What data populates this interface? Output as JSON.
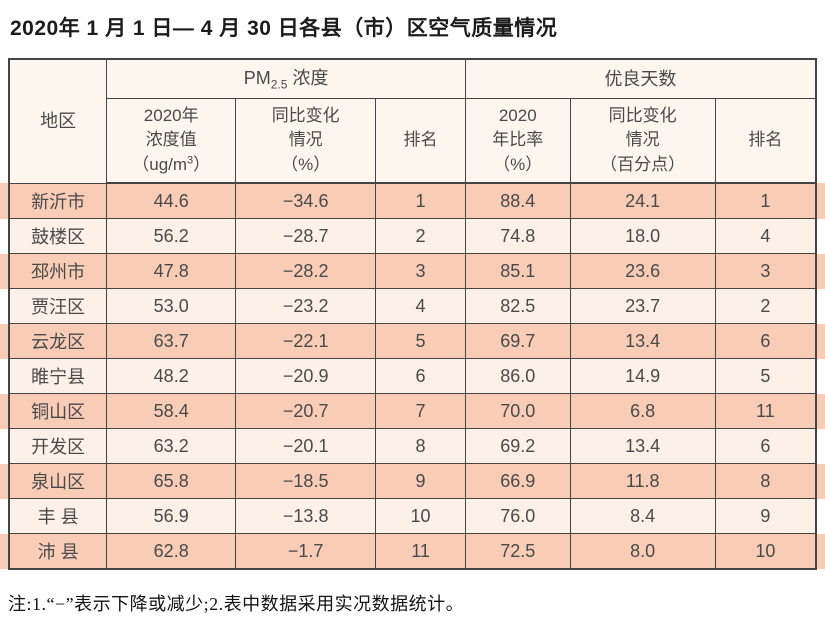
{
  "title": "2020年 1 月 1 日— 4 月 30 日各县（市）区空气质量情况",
  "table": {
    "header": {
      "region": "地区",
      "pm_group": {
        "prefix": "PM",
        "sub": "2.5",
        "suffix": " 浓度"
      },
      "good_group": "优良天数",
      "pm_value": {
        "line1": "2020年",
        "line2": "浓度值",
        "line3_prefix": "（ug/m",
        "line3_sup": "3",
        "line3_suffix": "）"
      },
      "pm_change": {
        "line1": "同比变化",
        "line2": "情况",
        "line3": "（%）"
      },
      "pm_rank": "排名",
      "good_ratio": {
        "line1": "2020",
        "line2": "年比率",
        "line3": "（%）"
      },
      "good_change": {
        "line1": "同比变化",
        "line2": "情况",
        "line3": "（百分点）"
      },
      "good_rank": "排名"
    },
    "rows": [
      {
        "region": "新沂市",
        "pm_value": "44.6",
        "pm_change": "−34.6",
        "pm_rank": "1",
        "good_ratio": "88.4",
        "good_change": "24.1",
        "good_rank": "1"
      },
      {
        "region": "鼓楼区",
        "pm_value": "56.2",
        "pm_change": "−28.7",
        "pm_rank": "2",
        "good_ratio": "74.8",
        "good_change": "18.0",
        "good_rank": "4"
      },
      {
        "region": "邳州市",
        "pm_value": "47.8",
        "pm_change": "−28.2",
        "pm_rank": "3",
        "good_ratio": "85.1",
        "good_change": "23.6",
        "good_rank": "3"
      },
      {
        "region": "贾汪区",
        "pm_value": "53.0",
        "pm_change": "−23.2",
        "pm_rank": "4",
        "good_ratio": "82.5",
        "good_change": "23.7",
        "good_rank": "2"
      },
      {
        "region": "云龙区",
        "pm_value": "63.7",
        "pm_change": "−22.1",
        "pm_rank": "5",
        "good_ratio": "69.7",
        "good_change": "13.4",
        "good_rank": "6"
      },
      {
        "region": "睢宁县",
        "pm_value": "48.2",
        "pm_change": "−20.9",
        "pm_rank": "6",
        "good_ratio": "86.0",
        "good_change": "14.9",
        "good_rank": "5"
      },
      {
        "region": "铜山区",
        "pm_value": "58.4",
        "pm_change": "−20.7",
        "pm_rank": "7",
        "good_ratio": "70.0",
        "good_change": "6.8",
        "good_rank": "11"
      },
      {
        "region": "开发区",
        "pm_value": "63.2",
        "pm_change": "−20.1",
        "pm_rank": "8",
        "good_ratio": "69.2",
        "good_change": "13.4",
        "good_rank": "6"
      },
      {
        "region": "泉山区",
        "pm_value": "65.8",
        "pm_change": "−18.5",
        "pm_rank": "9",
        "good_ratio": "66.9",
        "good_change": "11.8",
        "good_rank": "8"
      },
      {
        "region": "丰 县",
        "pm_value": "56.9",
        "pm_change": "−13.8",
        "pm_rank": "10",
        "good_ratio": "76.0",
        "good_change": "8.4",
        "good_rank": "9"
      },
      {
        "region": "沛 县",
        "pm_value": "62.8",
        "pm_change": "−1.7",
        "pm_rank": "11",
        "good_ratio": "72.5",
        "good_change": "8.0",
        "good_rank": "10"
      }
    ]
  },
  "footnote": "注:1.“−”表示下降或减少;2.表中数据采用实况数据统计。",
  "colors": {
    "stripe": "#f8ccb5",
    "row_light": "#fcf1e9",
    "header_bg": "#fdf6ee",
    "border": "#454545"
  }
}
